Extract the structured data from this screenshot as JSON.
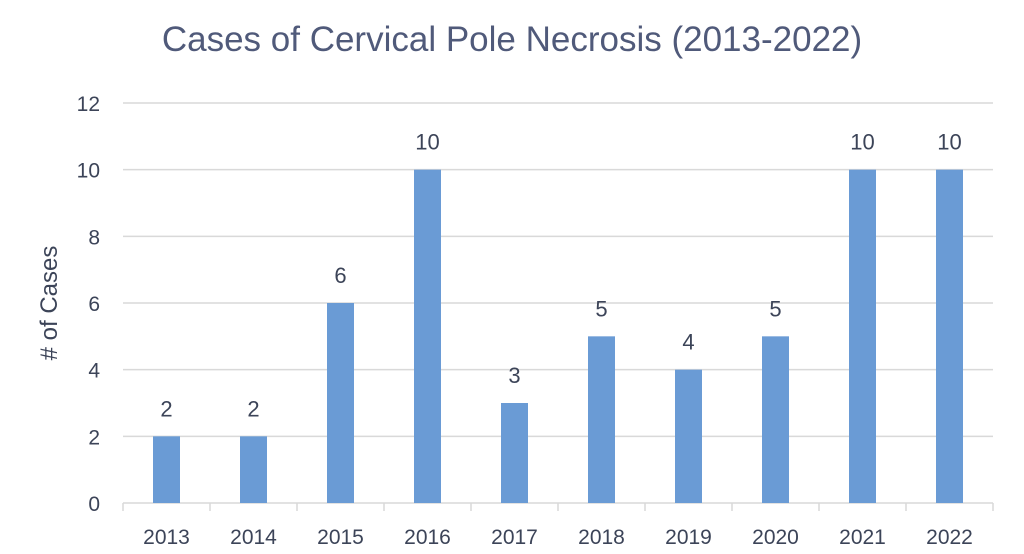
{
  "chart_data": {
    "type": "bar",
    "title": "Cases of Cervical Pole Necrosis (2013-2022)",
    "xlabel": "",
    "ylabel": "# of Cases",
    "categories": [
      "2013",
      "2014",
      "2015",
      "2016",
      "2017",
      "2018",
      "2019",
      "2020",
      "2021",
      "2022"
    ],
    "values": [
      2,
      2,
      6,
      10,
      3,
      5,
      4,
      5,
      10,
      10
    ],
    "ylim": [
      0,
      12
    ],
    "yticks": [
      0,
      2,
      4,
      6,
      8,
      10,
      12
    ],
    "grid": true,
    "legend": "none",
    "data_labels": true,
    "colors": {
      "bar": "#6a9bd5",
      "grid": "#d9d9d9",
      "text": "#3c4458",
      "title": "#505a7a",
      "axis_title": "#5a6480"
    }
  }
}
